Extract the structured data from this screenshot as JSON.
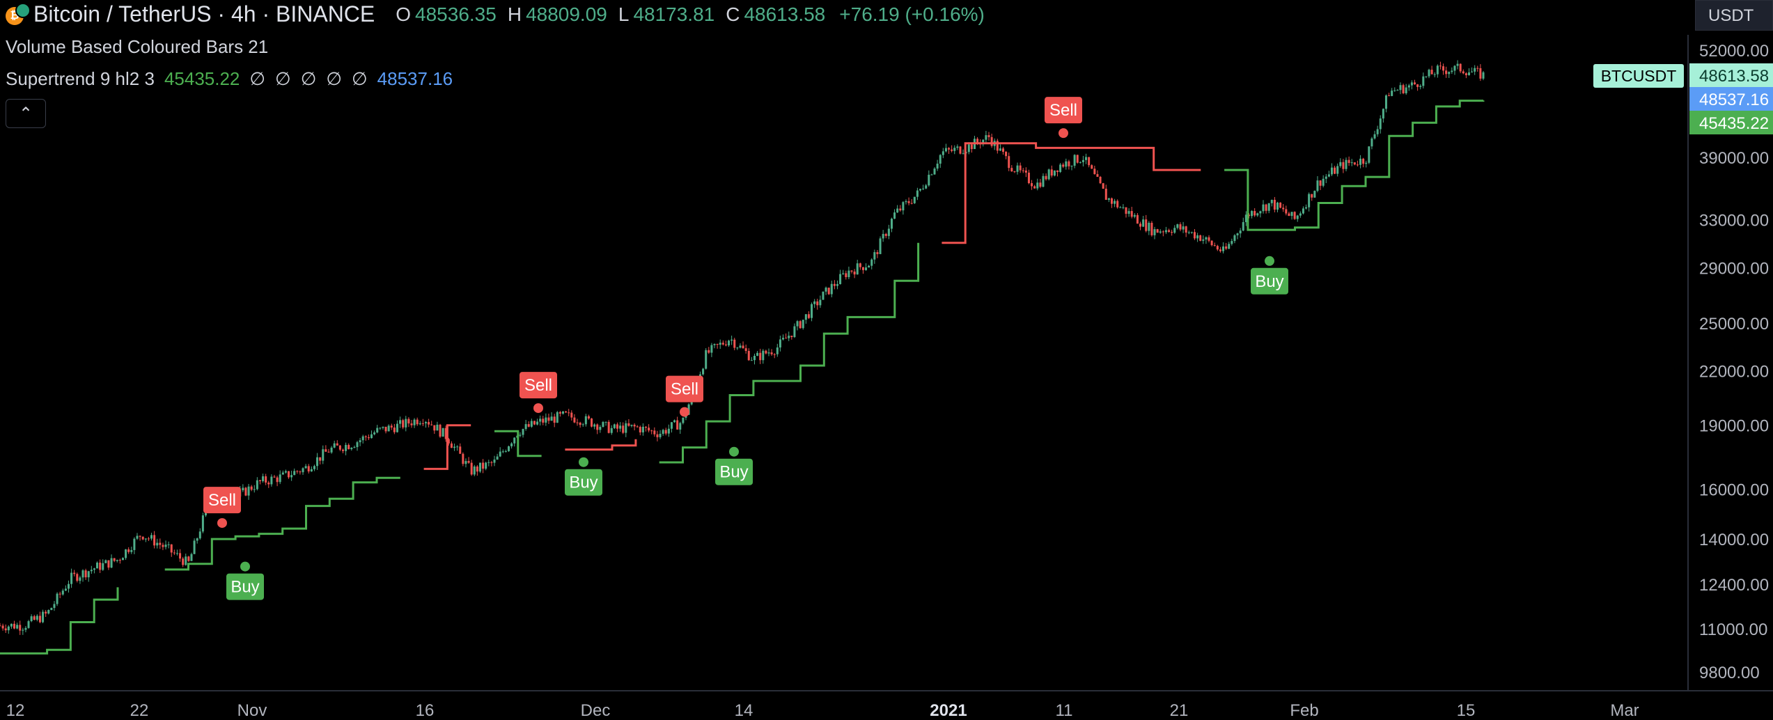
{
  "header": {
    "symbol_title": "Bitcoin / TetherUS · 4h · BINANCE",
    "ohlc": [
      {
        "key": "O",
        "value": "48536.35"
      },
      {
        "key": "H",
        "value": "48809.09"
      },
      {
        "key": "L",
        "value": "48173.81"
      },
      {
        "key": "C",
        "value": "48613.58"
      }
    ],
    "change": "+76.19 (+0.16%)",
    "currency": "USDT"
  },
  "indicators": {
    "volume_bars_label": "Volume Based Coloured Bars 21",
    "supertrend_label": "Supertrend 9 hl2 3",
    "supertrend_up_value": "45435.22",
    "supertrend_na_values": [
      "∅",
      "∅",
      "∅",
      "∅",
      "∅"
    ],
    "supertrend_down_value": "48537.16",
    "collapse_icon": "chevron-up-icon"
  },
  "colors": {
    "up": "#4fae8a",
    "down": "#ef5350",
    "supertrend_up": "#4caf50",
    "supertrend_down": "#ef5350",
    "blue": "#5b9cf6",
    "symbol_tag": "#a6f0d8"
  },
  "chart_data": {
    "type": "candlestick",
    "price_axis": {
      "scale": "log",
      "ticks": [
        "52000.00",
        "39000.00",
        "33000.00",
        "29000.00",
        "25000.00",
        "22000.00",
        "19000.00",
        "16000.00",
        "14000.00",
        "12400.00",
        "11000.00",
        "9800.00"
      ],
      "tick_values": [
        52000,
        39000,
        33000,
        29000,
        25000,
        22000,
        19000,
        16000,
        14000,
        12400,
        11000,
        9800
      ]
    },
    "time_axis": {
      "ticks": [
        "12",
        "22",
        "Nov",
        "16",
        "Dec",
        "14",
        "2021",
        "11",
        "21",
        "Feb",
        "15",
        "Mar"
      ],
      "bold": [
        "2021"
      ]
    },
    "price_labels": [
      {
        "name": "symbol",
        "text": "BTCUSDT"
      },
      {
        "name": "last",
        "text": "48613.58"
      },
      {
        "name": "supertrend_down",
        "text": "48537.16"
      },
      {
        "name": "supertrend_up",
        "text": "45435.22"
      }
    ],
    "signals": [
      {
        "type": "Sell",
        "price": 14400
      },
      {
        "type": "Buy",
        "price": 13300
      },
      {
        "type": "Sell",
        "price": 19600
      },
      {
        "type": "Buy",
        "price": 17600
      },
      {
        "type": "Sell",
        "price": 19400
      },
      {
        "type": "Buy",
        "price": 18100
      },
      {
        "type": "Sell",
        "price": 41000
      },
      {
        "type": "Buy",
        "price": 30200
      }
    ],
    "price_path": [
      11100,
      11100,
      11450,
      12600,
      12950,
      13250,
      14200,
      13700,
      13100,
      15850,
      15650,
      16300,
      16550,
      16950,
      17800,
      18100,
      18700,
      19000,
      19400,
      18400,
      16800,
      17200,
      18700,
      19200,
      19500,
      19200,
      18800,
      18900,
      18600,
      19200,
      23000,
      24000,
      22700,
      23400,
      25000,
      27000,
      28700,
      29400,
      33500,
      35400,
      39500,
      40000,
      41200,
      38000,
      36200,
      38200,
      39000,
      35000,
      33500,
      32000,
      32300,
      31500,
      30200,
      33500,
      34500,
      33000,
      36500,
      38200,
      38800,
      46500,
      47300,
      49200,
      49500,
      48613.58
    ],
    "supertrend_path": [
      10300,
      10300,
      10400,
      11200,
      11900,
      12300,
      12700,
      12900,
      13100,
      14000,
      14100,
      14200,
      14400,
      15300,
      15600,
      16300,
      16500,
      16500,
      16900,
      19000,
      19000,
      18700,
      17500,
      17500,
      17800,
      17800,
      18000,
      18300,
      17200,
      17900,
      19200,
      20600,
      21400,
      21400,
      22300,
      24300,
      25400,
      25400,
      28000,
      31000,
      31000,
      40500,
      40500,
      40500,
      40000,
      40000,
      40000,
      40000,
      40000,
      37700,
      37700,
      37700,
      37700,
      32100,
      32100,
      32300,
      34500,
      36100,
      37000,
      41300,
      42800,
      44700,
      45400,
      45435.22
    ],
    "supertrend_mode": [
      "u",
      "u",
      "u",
      "u",
      "u",
      "u",
      "d",
      "u",
      "u",
      "u",
      "u",
      "u",
      "u",
      "u",
      "u",
      "u",
      "u",
      "u",
      "d",
      "d",
      "d",
      "u",
      "u",
      "u",
      "d",
      "d",
      "d",
      "d",
      "u",
      "u",
      "u",
      "u",
      "u",
      "u",
      "u",
      "u",
      "u",
      "u",
      "u",
      "u",
      "d",
      "d",
      "d",
      "d",
      "d",
      "d",
      "d",
      "d",
      "d",
      "d",
      "d",
      "d",
      "u",
      "u",
      "u",
      "u",
      "u",
      "u",
      "u",
      "u",
      "u",
      "u",
      "u",
      "u"
    ]
  }
}
